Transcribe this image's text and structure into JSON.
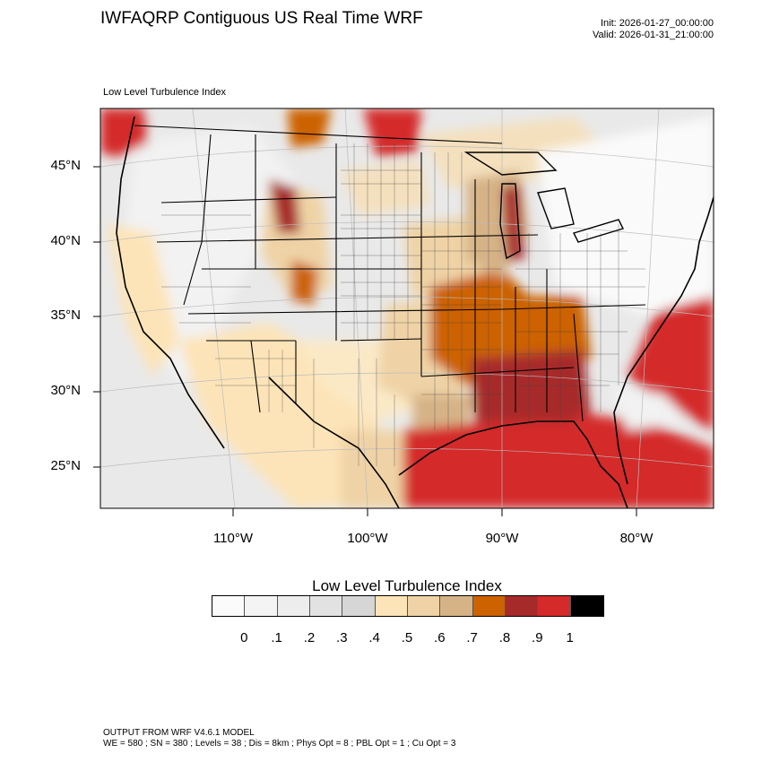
{
  "header": {
    "title": "IWFAQRP Contiguous US Real Time WRF",
    "init": "Init: 2026-01-27_00:00:00",
    "valid": "Valid: 2026-01-31_21:00:00",
    "field_title": "Low Level Turbulence Index"
  },
  "map": {
    "lat_labels": [
      "45°N",
      "40°N",
      "35°N",
      "30°N",
      "25°N"
    ],
    "lon_labels": [
      "110°W",
      "100°W",
      "90°W",
      "80°W"
    ]
  },
  "colorbar": {
    "title": "Low Level Turbulence Index",
    "labels": [
      "0",
      ".1",
      ".2",
      ".3",
      ".4",
      ".5",
      ".6",
      ".7",
      ".8",
      ".9",
      "1"
    ],
    "colors": [
      "#fbfbfb",
      "#f4f4f4",
      "#ededed",
      "#e2e2e2",
      "#d6d6d6",
      "#fde4b8",
      "#efd3a6",
      "#d6b387",
      "#cc6200",
      "#a72a2a",
      "#d42a2a",
      "#000000"
    ]
  },
  "footer": {
    "line1": "OUTPUT FROM WRF V4.6.1 MODEL",
    "line2": "WE = 580 ; SN = 380 ; Levels = 38 ; Dis = 8km ; Phys Opt = 8 ; PBL Opt = 1 ; Cu Opt = 3"
  }
}
